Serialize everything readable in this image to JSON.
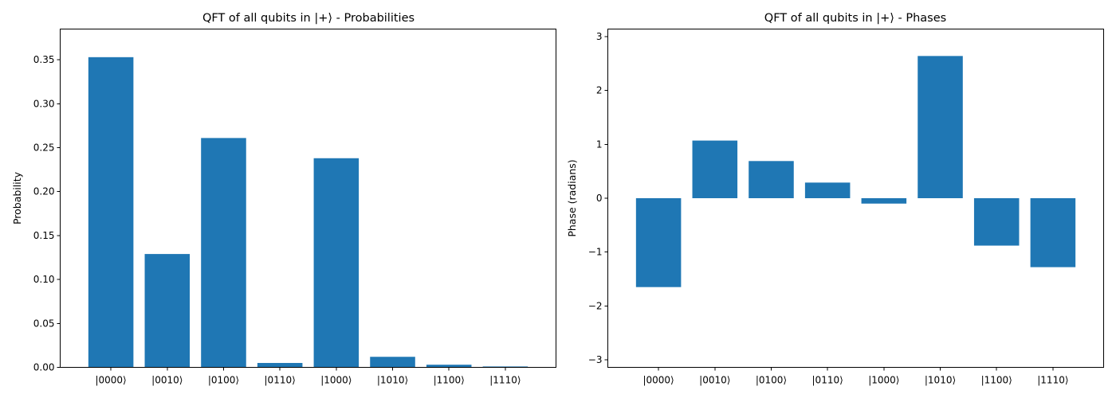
{
  "chart_data": [
    {
      "type": "bar",
      "title": "QFT of all qubits in |+⟩ - Probabilities",
      "xlabel": "",
      "ylabel": "Probability",
      "categories": [
        "|0000⟩",
        "|0010⟩",
        "|0100⟩",
        "|0110⟩",
        "|1000⟩",
        "|1010⟩",
        "|1100⟩",
        "|1110⟩"
      ],
      "values": [
        0.353,
        0.129,
        0.261,
        0.005,
        0.238,
        0.012,
        0.003,
        0.001
      ],
      "ylim": [
        0,
        0.385
      ],
      "yticks": [
        0.0,
        0.05,
        0.1,
        0.15,
        0.2,
        0.25,
        0.3,
        0.35
      ],
      "ytick_labels": [
        "0.00",
        "0.05",
        "0.10",
        "0.15",
        "0.20",
        "0.25",
        "0.30",
        "0.35"
      ],
      "color": "#1f77b4",
      "grid": false
    },
    {
      "type": "bar",
      "title": "QFT of all qubits in |+⟩ - Phases",
      "xlabel": "",
      "ylabel": "Phase (radians)",
      "categories": [
        "|0000⟩",
        "|0010⟩",
        "|0100⟩",
        "|0110⟩",
        "|1000⟩",
        "|1010⟩",
        "|1100⟩",
        "|1110⟩"
      ],
      "values": [
        -1.65,
        1.07,
        0.69,
        0.29,
        -0.1,
        2.64,
        -0.88,
        -1.28
      ],
      "ylim": [
        -3.14,
        3.14
      ],
      "yticks": [
        -3,
        -2,
        -1,
        0,
        1,
        2,
        3
      ],
      "ytick_labels": [
        "−3",
        "−2",
        "−1",
        "0",
        "1",
        "2",
        "3"
      ],
      "color": "#1f77b4",
      "grid": false
    }
  ]
}
